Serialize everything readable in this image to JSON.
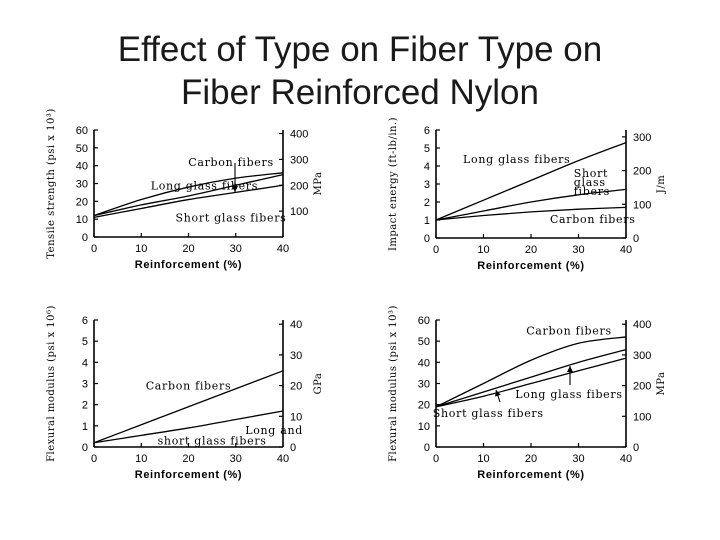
{
  "title": {
    "line1": "Effect of Type on Fiber Type on",
    "line2": "Fiber Reinforced Nylon"
  },
  "chart_data": [
    {
      "type": "line",
      "xlabel": "Reinforcement (%)",
      "ylabel": "Tensile strength (psi x 10³)",
      "y2label": "MPa",
      "x_ticks": [
        0,
        10,
        20,
        30,
        40
      ],
      "y_ticks": [
        0,
        10,
        20,
        30,
        40,
        50,
        60
      ],
      "y2_ticks": [
        100,
        200,
        300,
        400
      ],
      "xlim": [
        0,
        40
      ],
      "ylim": [
        0,
        60
      ],
      "y2lim": [
        0,
        413.7
      ],
      "series": [
        {
          "name": "Carbon fibers",
          "x": [
            0,
            10,
            20,
            30,
            40
          ],
          "y": [
            12,
            18,
            23,
            29,
            35
          ]
        },
        {
          "name": "Long glass fibers",
          "x": [
            0,
            10,
            20,
            30,
            40
          ],
          "y": [
            12,
            21,
            28,
            33,
            36
          ]
        },
        {
          "name": "Short glass fibers",
          "x": [
            0,
            10,
            20,
            30,
            40
          ],
          "y": [
            11,
            16,
            21,
            25,
            29
          ]
        }
      ],
      "annotations": [
        {
          "text": "Carbon fibers",
          "x": 29,
          "y": 42
        },
        {
          "text": "Long glass fibers",
          "x": 12,
          "y": 29
        },
        {
          "text": "Short glass fibers",
          "x": 29,
          "y": 11
        }
      ]
    },
    {
      "type": "line",
      "xlabel": "Reinforcement (%)",
      "ylabel": "Impact energy (ft-lb/in.)",
      "y2label": "J/m",
      "x_ticks": [
        0,
        10,
        20,
        30,
        40
      ],
      "y_ticks": [
        0,
        1,
        2,
        3,
        4,
        5,
        6
      ],
      "y2_ticks": [
        0,
        100,
        200,
        300
      ],
      "xlim": [
        0,
        40
      ],
      "ylim": [
        0,
        6
      ],
      "y2lim": [
        0,
        320.3
      ],
      "series": [
        {
          "name": "Long glass fibers",
          "x": [
            0,
            10,
            20,
            30,
            40
          ],
          "y": [
            1.0,
            2.1,
            3.2,
            4.3,
            5.3
          ]
        },
        {
          "name": "Short glass fibers",
          "x": [
            0,
            10,
            20,
            30,
            40
          ],
          "y": [
            1.0,
            1.5,
            2.0,
            2.4,
            2.7
          ]
        },
        {
          "name": "Carbon fibers",
          "x": [
            0,
            10,
            20,
            30,
            40
          ],
          "y": [
            1.0,
            1.25,
            1.45,
            1.6,
            1.7
          ]
        }
      ],
      "annotations": [
        {
          "text": "Long glass fibers",
          "x": 17,
          "y": 4.4
        },
        {
          "text": "Short",
          "x": 29,
          "y": 3.6
        },
        {
          "text": "glass",
          "x": 29,
          "y": 3.1
        },
        {
          "text": "fibers",
          "x": 29,
          "y": 2.6
        },
        {
          "text": "Carbon fibers",
          "x": 33,
          "y": 1.05
        }
      ]
    },
    {
      "type": "line",
      "xlabel": "Reinforcement (%)",
      "ylabel": "Flexural modulus (psi x 10⁶)",
      "y2label": "GPa",
      "x_ticks": [
        0,
        10,
        20,
        30,
        40
      ],
      "y_ticks": [
        0,
        1,
        2,
        3,
        4,
        5,
        6
      ],
      "y2_ticks": [
        0,
        10,
        20,
        30,
        40
      ],
      "xlim": [
        0,
        40
      ],
      "ylim": [
        0,
        6
      ],
      "y2lim": [
        0,
        41.37
      ],
      "series": [
        {
          "name": "Carbon fibers",
          "x": [
            0,
            10,
            20,
            30,
            40
          ],
          "y": [
            0.2,
            1.05,
            1.9,
            2.75,
            3.6
          ]
        },
        {
          "name": "Long and short glass fibers",
          "x": [
            0,
            10,
            20,
            30,
            40
          ],
          "y": [
            0.2,
            0.55,
            0.9,
            1.3,
            1.7
          ]
        }
      ],
      "annotations": [
        {
          "text": "Carbon fibers",
          "x": 20,
          "y": 2.9
        },
        {
          "text": "Long and",
          "x": 32,
          "y": 0.8
        },
        {
          "text": "short glass fibers",
          "x": 25,
          "y": 0.3
        }
      ]
    },
    {
      "type": "line",
      "xlabel": "Reinforcement (%)",
      "ylabel": "Flexural modulus (psi x 10³)",
      "y2label": "MPa",
      "x_ticks": [
        0,
        10,
        20,
        30,
        40
      ],
      "y_ticks": [
        0,
        10,
        20,
        30,
        40,
        50,
        60
      ],
      "y2_ticks": [
        0,
        100,
        200,
        300,
        400
      ],
      "xlim": [
        0,
        40
      ],
      "ylim": [
        0,
        60
      ],
      "y2lim": [
        0,
        413.7
      ],
      "series": [
        {
          "name": "Carbon fibers",
          "x": [
            0,
            10,
            20,
            30,
            40
          ],
          "y": [
            19,
            30,
            41,
            49,
            52
          ]
        },
        {
          "name": "Long glass fibers",
          "x": [
            0,
            10,
            20,
            30,
            40
          ],
          "y": [
            19,
            26,
            33,
            40,
            46
          ]
        },
        {
          "name": "Short glass fibers",
          "x": [
            0,
            10,
            20,
            30,
            40
          ],
          "y": [
            19,
            24,
            30,
            36,
            42
          ]
        }
      ],
      "annotations": [
        {
          "text": "Carbon fibers",
          "x": 28,
          "y": 55
        },
        {
          "text": "Long glass fibers",
          "x": 28,
          "y": 25
        },
        {
          "text": "Short glass fibers",
          "x": 11,
          "y": 16
        }
      ]
    }
  ]
}
